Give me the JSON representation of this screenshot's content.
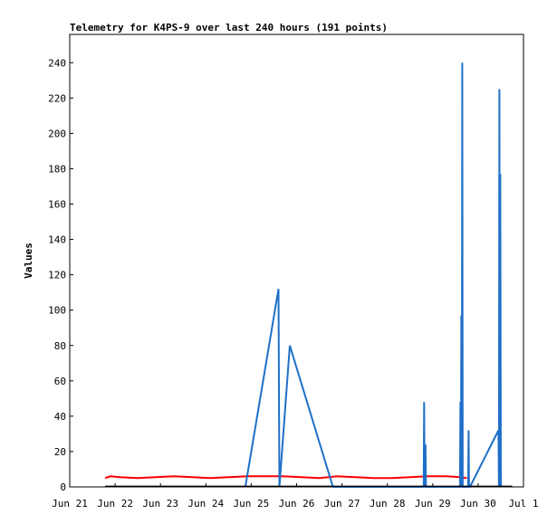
{
  "chart_data": {
    "type": "line",
    "title": "Telemetry for K4PS-9 over last 240 hours (191 points)",
    "ylabel": "Values",
    "xlabel": "",
    "x_ticks": [
      "Jun 21",
      "Jun 22",
      "Jun 23",
      "Jun 24",
      "Jun 25",
      "Jun 26",
      "Jun 27",
      "Jun 28",
      "Jun 29",
      "Jun 30",
      "Jul 1"
    ],
    "y_ticks": [
      "0",
      "20",
      "40",
      "60",
      "80",
      "100",
      "120",
      "140",
      "160",
      "180",
      "200",
      "220",
      "240"
    ],
    "xlim": [
      0,
      10
    ],
    "ylim": [
      0,
      256
    ],
    "grid": false,
    "series": [
      {
        "color": "#ff0000",
        "points": [
          [
            0.78,
            5
          ],
          [
            0.9,
            6
          ],
          [
            1.1,
            5.5
          ],
          [
            1.5,
            5
          ],
          [
            1.9,
            5.5
          ],
          [
            2.3,
            6
          ],
          [
            2.7,
            5.5
          ],
          [
            3.1,
            5
          ],
          [
            3.5,
            5.5
          ],
          [
            3.9,
            6
          ],
          [
            4.3,
            6
          ],
          [
            4.7,
            6
          ],
          [
            5.1,
            5.5
          ],
          [
            5.5,
            5
          ],
          [
            5.9,
            6
          ],
          [
            6.3,
            5.5
          ],
          [
            6.7,
            5
          ],
          [
            7.1,
            5
          ],
          [
            7.5,
            5.5
          ],
          [
            7.9,
            6
          ],
          [
            8.3,
            6
          ],
          [
            8.6,
            5.5
          ],
          [
            8.75,
            5
          ]
        ]
      },
      {
        "color": "#1f6fc8",
        "points": [
          [
            3.87,
            0
          ],
          [
            4.6,
            112
          ],
          [
            4.62,
            0
          ],
          [
            4.85,
            80
          ],
          [
            5.8,
            0
          ],
          [
            7.8,
            0
          ],
          [
            7.81,
            48
          ],
          [
            7.82,
            0
          ],
          [
            7.84,
            24
          ],
          [
            7.85,
            0
          ],
          [
            8.6,
            0
          ],
          [
            8.61,
            48
          ],
          [
            8.62,
            0
          ],
          [
            8.63,
            97
          ],
          [
            8.64,
            0
          ],
          [
            8.65,
            240
          ],
          [
            8.66,
            0
          ],
          [
            8.78,
            0
          ],
          [
            8.79,
            32
          ],
          [
            8.8,
            0
          ],
          [
            8.82,
            0
          ],
          [
            9.45,
            32
          ],
          [
            9.46,
            0
          ],
          [
            9.47,
            225
          ],
          [
            9.48,
            0
          ],
          [
            9.49,
            177
          ],
          [
            9.5,
            0
          ]
        ]
      },
      {
        "color": "#000000",
        "points": [
          [
            0.78,
            0.3
          ],
          [
            9.75,
            0.3
          ]
        ]
      }
    ]
  }
}
